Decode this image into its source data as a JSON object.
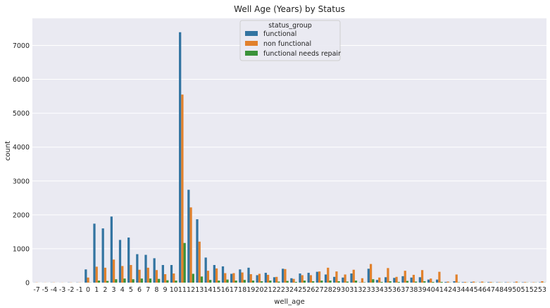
{
  "chart_data": {
    "type": "bar",
    "title": "Well Age (Years) by Status",
    "xlabel": "well_age",
    "ylabel": "count",
    "ylim": [
      0,
      7800
    ],
    "yticks": [
      0,
      1000,
      2000,
      3000,
      4000,
      5000,
      6000,
      7000
    ],
    "grid": true,
    "legend_title": "status_group",
    "legend_position": "top-center",
    "categories": [
      "-7",
      "-5",
      "-4",
      "-3",
      "-2",
      "-1",
      "0",
      "1",
      "2",
      "3",
      "4",
      "5",
      "6",
      "7",
      "8",
      "9",
      "10",
      "11",
      "12",
      "13",
      "14",
      "15",
      "16",
      "17",
      "18",
      "19",
      "20",
      "21",
      "22",
      "23",
      "24",
      "25",
      "26",
      "27",
      "28",
      "29",
      "30",
      "31",
      "32",
      "33",
      "34",
      "35",
      "36",
      "37",
      "38",
      "39",
      "40",
      "41",
      "42",
      "43",
      "44",
      "45",
      "46",
      "47",
      "48",
      "49",
      "50",
      "51",
      "52",
      "53"
    ],
    "series": [
      {
        "name": "functional",
        "color": "#3274a1",
        "values": [
          3,
          2,
          4,
          2,
          5,
          5,
          390,
          1740,
          1600,
          1950,
          1260,
          1330,
          840,
          820,
          720,
          520,
          520,
          7390,
          2740,
          1870,
          740,
          520,
          480,
          260,
          390,
          440,
          220,
          290,
          160,
          410,
          130,
          270,
          290,
          320,
          240,
          170,
          150,
          270,
          10,
          410,
          80,
          160,
          140,
          190,
          150,
          160,
          90,
          90,
          20,
          40,
          15,
          20,
          10,
          15,
          10,
          10,
          10,
          10,
          5,
          10
        ]
      },
      {
        "name": "non functional",
        "color": "#e1812c",
        "values": [
          5,
          3,
          5,
          3,
          5,
          5,
          150,
          470,
          440,
          680,
          490,
          520,
          380,
          440,
          370,
          250,
          270,
          5550,
          2220,
          1210,
          350,
          420,
          280,
          280,
          300,
          250,
          260,
          230,
          170,
          400,
          110,
          220,
          220,
          330,
          440,
          330,
          240,
          380,
          130,
          550,
          150,
          430,
          170,
          350,
          230,
          370,
          120,
          320,
          30,
          240,
          20,
          30,
          30,
          20,
          10,
          10,
          30,
          15,
          10,
          40
        ]
      },
      {
        "name": "functional needs repair",
        "color": "#3a923a",
        "values": [
          1,
          1,
          1,
          1,
          1,
          1,
          5,
          60,
          50,
          100,
          120,
          100,
          120,
          120,
          110,
          70,
          60,
          1170,
          260,
          180,
          80,
          60,
          90,
          60,
          80,
          60,
          40,
          60,
          30,
          50,
          20,
          60,
          40,
          60,
          60,
          40,
          30,
          60,
          10,
          100,
          20,
          40,
          20,
          50,
          30,
          40,
          20,
          20,
          5,
          10,
          5,
          5,
          5,
          5,
          5,
          5,
          5,
          5,
          5,
          5
        ]
      }
    ]
  }
}
